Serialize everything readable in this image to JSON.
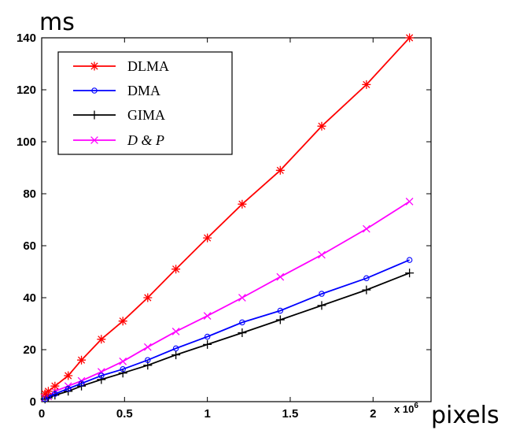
{
  "chart_data": {
    "type": "line",
    "ylabel": "ms",
    "xlabel": "pixels",
    "x_multiplier_label": "x 10",
    "x_multiplier_exp": "6",
    "xlim": [
      0,
      2.22
    ],
    "ylim": [
      0,
      140
    ],
    "x_ticks": [
      0,
      0.5,
      1,
      1.5,
      2
    ],
    "x_tick_labels": [
      "0",
      "0.5",
      "1",
      "1.5",
      "2"
    ],
    "y_ticks": [
      0,
      20,
      40,
      60,
      80,
      100,
      120,
      140
    ],
    "y_tick_labels": [
      "0",
      "20",
      "40",
      "60",
      "80",
      "100",
      "120",
      "140"
    ],
    "grid": false,
    "legend_position": "top-left",
    "series": [
      {
        "name": "DLMA",
        "color": "#ff0000",
        "marker": "star",
        "x": [
          0.02,
          0.04,
          0.08,
          0.16,
          0.24,
          0.36,
          0.49,
          0.64,
          0.81,
          1.0,
          1.21,
          1.44,
          1.69,
          1.96,
          2.22
        ],
        "y": [
          3,
          4,
          6,
          10,
          16,
          24,
          31,
          40,
          51,
          63,
          76,
          89,
          106,
          122,
          140
        ]
      },
      {
        "name": "DMA",
        "color": "#0000ff",
        "marker": "circle",
        "x": [
          0.02,
          0.04,
          0.08,
          0.16,
          0.24,
          0.36,
          0.49,
          0.64,
          0.81,
          1.0,
          1.21,
          1.44,
          1.69,
          1.96,
          2.22
        ],
        "y": [
          1,
          2,
          3,
          5,
          7,
          10,
          12.5,
          16,
          20.5,
          25,
          30.5,
          35,
          41.5,
          47.5,
          54.5
        ]
      },
      {
        "name": "GIMA",
        "color": "#000000",
        "marker": "plus",
        "x": [
          0.02,
          0.04,
          0.08,
          0.16,
          0.24,
          0.36,
          0.49,
          0.64,
          0.81,
          1.0,
          1.21,
          1.44,
          1.69,
          1.96,
          2.22
        ],
        "y": [
          1,
          1.5,
          2.5,
          4,
          6,
          8.5,
          11,
          14,
          18,
          22,
          26.5,
          31.5,
          37,
          43,
          49.5
        ]
      },
      {
        "name": "D & P",
        "color": "#ff00ff",
        "marker": "x",
        "x": [
          0.02,
          0.04,
          0.08,
          0.16,
          0.24,
          0.36,
          0.49,
          0.64,
          0.81,
          1.0,
          1.21,
          1.44,
          1.69,
          1.96,
          2.22
        ],
        "y": [
          1.5,
          2,
          4,
          6,
          8,
          11.5,
          15.5,
          21,
          27,
          33,
          40,
          48,
          56.5,
          66.5,
          77
        ]
      }
    ]
  }
}
